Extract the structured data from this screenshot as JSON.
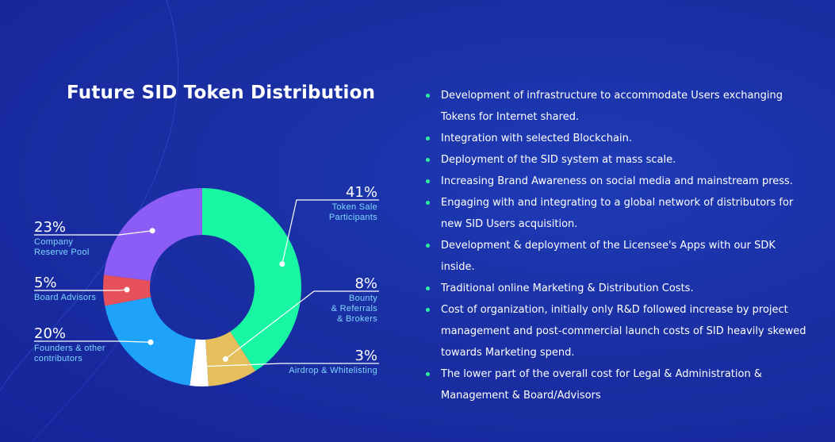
{
  "title": "Future SID Token Distribution",
  "chart_data": {
    "type": "pie",
    "title": "Future SID Token Distribution",
    "style": "donut",
    "slices": [
      {
        "pct_label": "41%",
        "value": 41,
        "label_lines": [
          "Token Sale",
          "Participants"
        ],
        "color": "#18f5a3"
      },
      {
        "pct_label": "8%",
        "value": 8,
        "label_lines": [
          "Bounty",
          "& Referrals",
          "& Brokers"
        ],
        "color": "#e4bf5b"
      },
      {
        "pct_label": "3%",
        "value": 3,
        "label_lines": [
          "Airdrop & Whitelisting"
        ],
        "color": "#ffffff"
      },
      {
        "pct_label": "20%",
        "value": 20,
        "label_lines": [
          "Founders & other",
          "contributors"
        ],
        "color": "#1fa2fa"
      },
      {
        "pct_label": "5%",
        "value": 5,
        "label_lines": [
          "Board Advisors"
        ],
        "color": "#e6505b"
      },
      {
        "pct_label": "23%",
        "value": 23,
        "label_lines": [
          "Company",
          "Reserve Pool"
        ],
        "color": "#8b5cf6"
      }
    ]
  },
  "bullets": [
    "Development of infrastructure to accommodate Users exchanging Tokens for Internet shared.",
    "Integration with selected Blockchain.",
    "Deployment of the SID system at mass scale.",
    "Increasing Brand Awareness on social media and mainstream press.",
    "Engaging with and integrating to a global network of distributors for new SID Users acquisition.",
    "Development & deployment of the Licensee's Apps with our SDK inside.",
    "Traditional online Marketing & Distribution Costs.",
    "Cost of organization, initially only R&D followed increase by project management and post-commercial launch costs of SID heavily skewed towards Marketing spend.",
    "The lower part of the overall cost for Legal & Administration & Management & Board/Advisors"
  ]
}
